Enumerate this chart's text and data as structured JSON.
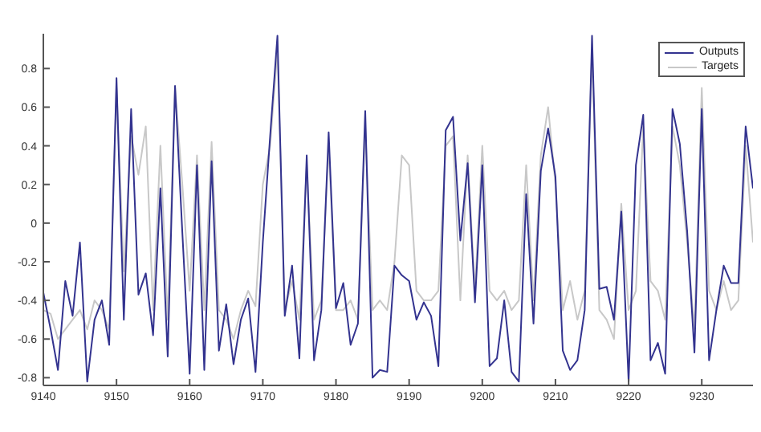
{
  "chart_data": {
    "type": "line",
    "x": [
      9140,
      9141,
      9142,
      9143,
      9144,
      9145,
      9146,
      9147,
      9148,
      9149,
      9150,
      9151,
      9152,
      9153,
      9154,
      9155,
      9156,
      9157,
      9158,
      9159,
      9160,
      9161,
      9162,
      9163,
      9164,
      9165,
      9166,
      9167,
      9168,
      9169,
      9170,
      9171,
      9172,
      9173,
      9174,
      9175,
      9176,
      9177,
      9178,
      9179,
      9180,
      9181,
      9182,
      9183,
      9184,
      9185,
      9186,
      9187,
      9188,
      9189,
      9190,
      9191,
      9192,
      9193,
      9194,
      9195,
      9196,
      9197,
      9198,
      9199,
      9200,
      9201,
      9202,
      9203,
      9204,
      9205,
      9206,
      9207,
      9208,
      9209,
      9210,
      9211,
      9212,
      9213,
      9214,
      9215,
      9216,
      9217,
      9218,
      9219,
      9220,
      9221,
      9222,
      9223,
      9224,
      9225,
      9226,
      9227,
      9228,
      9229,
      9230,
      9231,
      9232,
      9233,
      9234,
      9235,
      9236,
      9237
    ],
    "series": [
      {
        "name": "Outputs",
        "color": "#33338f",
        "values": [
          -0.36,
          -0.55,
          -0.76,
          -0.3,
          -0.48,
          -0.1,
          -0.82,
          -0.5,
          -0.4,
          -0.63,
          0.75,
          -0.5,
          0.59,
          -0.37,
          -0.26,
          -0.58,
          0.18,
          -0.69,
          0.71,
          -0.05,
          -0.78,
          0.3,
          -0.76,
          0.32,
          -0.66,
          -0.42,
          -0.73,
          -0.5,
          -0.39,
          -0.77,
          -0.1,
          0.45,
          0.97,
          -0.48,
          -0.22,
          -0.7,
          0.35,
          -0.71,
          -0.45,
          0.47,
          -0.44,
          -0.31,
          -0.63,
          -0.52,
          0.58,
          -0.8,
          -0.76,
          -0.77,
          -0.22,
          -0.27,
          -0.3,
          -0.5,
          -0.41,
          -0.48,
          -0.74,
          0.48,
          0.55,
          -0.09,
          0.31,
          -0.41,
          0.3,
          -0.74,
          -0.7,
          -0.4,
          -0.77,
          -0.82,
          0.15,
          -0.52,
          0.27,
          0.49,
          0.24,
          -0.66,
          -0.76,
          -0.71,
          -0.45,
          0.97,
          -0.34,
          -0.33,
          -0.5,
          0.06,
          -0.82,
          0.3,
          0.56,
          -0.71,
          -0.62,
          -0.78,
          0.59,
          0.41,
          -0.04,
          -0.67,
          0.59,
          -0.71,
          -0.45,
          -0.22,
          -0.31,
          -0.31,
          0.5,
          0.18
        ]
      },
      {
        "name": "Targets",
        "color": "#c8c8c8",
        "values": [
          -0.45,
          -0.47,
          -0.6,
          -0.55,
          -0.5,
          -0.45,
          -0.55,
          -0.4,
          -0.45,
          -0.55,
          0.7,
          -0.25,
          0.45,
          0.25,
          0.5,
          -0.45,
          0.4,
          -0.5,
          0.7,
          0.2,
          -0.35,
          0.35,
          -0.45,
          0.42,
          -0.45,
          -0.5,
          -0.6,
          -0.45,
          -0.35,
          -0.43,
          0.2,
          0.4,
          0.9,
          -0.45,
          -0.3,
          -0.5,
          0.3,
          -0.5,
          -0.4,
          0.4,
          -0.45,
          -0.45,
          -0.4,
          -0.5,
          0.5,
          -0.45,
          -0.4,
          -0.45,
          -0.2,
          0.35,
          0.3,
          -0.35,
          -0.4,
          -0.4,
          -0.35,
          0.4,
          0.45,
          -0.4,
          0.35,
          -0.35,
          0.4,
          -0.35,
          -0.4,
          -0.35,
          -0.45,
          -0.4,
          0.3,
          -0.4,
          0.35,
          0.6,
          0.2,
          -0.45,
          -0.3,
          -0.5,
          -0.35,
          0.9,
          -0.45,
          -0.5,
          -0.6,
          0.1,
          -0.45,
          -0.35,
          0.5,
          -0.3,
          -0.35,
          -0.5,
          0.5,
          0.3,
          -0.1,
          -0.55,
          0.7,
          -0.35,
          -0.45,
          -0.3,
          -0.45,
          -0.4,
          0.4,
          -0.1
        ]
      }
    ],
    "xlim": [
      9140,
      9237
    ],
    "xticks": [
      9140,
      9150,
      9160,
      9170,
      9180,
      9190,
      9200,
      9210,
      9220,
      9230
    ],
    "ylim": [
      -0.84,
      0.98
    ],
    "yticks": [
      -0.8,
      -0.6,
      -0.4,
      -0.2,
      0,
      0.2,
      0.4,
      0.6,
      0.8
    ],
    "grid": false,
    "legend": "top right",
    "marker": "none",
    "line_style": "solid"
  }
}
